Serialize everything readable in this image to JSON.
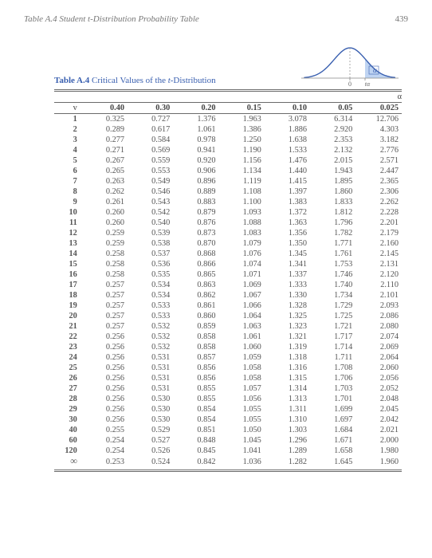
{
  "page": {
    "running_head": "Table A.4   Student t-Distribution Probability Table",
    "page_number": "439"
  },
  "caption": {
    "prefix_bold": "Table A.4",
    "rest": " Critical Values of the ",
    "it": "t",
    "tail": "-Distribution"
  },
  "curve": {
    "line_color": "#3a60b0",
    "fill_color": "#bfd4f2",
    "axis_color": "#888888",
    "tick_label_a": "0",
    "tick_label_b": "tα",
    "shade_label": "α"
  },
  "table": {
    "alpha_symbol": "α",
    "v_symbol": "v",
    "inf_symbol": "∞",
    "alphas": [
      "0.40",
      "0.30",
      "0.20",
      "0.15",
      "0.10",
      "0.05",
      "0.025"
    ],
    "group_size": 5,
    "rows": [
      {
        "v": "1",
        "c": [
          "0.325",
          "0.727",
          "1.376",
          "1.963",
          "3.078",
          "6.314",
          "12.706"
        ]
      },
      {
        "v": "2",
        "c": [
          "0.289",
          "0.617",
          "1.061",
          "1.386",
          "1.886",
          "2.920",
          "4.303"
        ]
      },
      {
        "v": "3",
        "c": [
          "0.277",
          "0.584",
          "0.978",
          "1.250",
          "1.638",
          "2.353",
          "3.182"
        ]
      },
      {
        "v": "4",
        "c": [
          "0.271",
          "0.569",
          "0.941",
          "1.190",
          "1.533",
          "2.132",
          "2.776"
        ]
      },
      {
        "v": "5",
        "c": [
          "0.267",
          "0.559",
          "0.920",
          "1.156",
          "1.476",
          "2.015",
          "2.571"
        ]
      },
      {
        "v": "6",
        "c": [
          "0.265",
          "0.553",
          "0.906",
          "1.134",
          "1.440",
          "1.943",
          "2.447"
        ]
      },
      {
        "v": "7",
        "c": [
          "0.263",
          "0.549",
          "0.896",
          "1.119",
          "1.415",
          "1.895",
          "2.365"
        ]
      },
      {
        "v": "8",
        "c": [
          "0.262",
          "0.546",
          "0.889",
          "1.108",
          "1.397",
          "1.860",
          "2.306"
        ]
      },
      {
        "v": "9",
        "c": [
          "0.261",
          "0.543",
          "0.883",
          "1.100",
          "1.383",
          "1.833",
          "2.262"
        ]
      },
      {
        "v": "10",
        "c": [
          "0.260",
          "0.542",
          "0.879",
          "1.093",
          "1.372",
          "1.812",
          "2.228"
        ]
      },
      {
        "v": "11",
        "c": [
          "0.260",
          "0.540",
          "0.876",
          "1.088",
          "1.363",
          "1.796",
          "2.201"
        ]
      },
      {
        "v": "12",
        "c": [
          "0.259",
          "0.539",
          "0.873",
          "1.083",
          "1.356",
          "1.782",
          "2.179"
        ]
      },
      {
        "v": "13",
        "c": [
          "0.259",
          "0.538",
          "0.870",
          "1.079",
          "1.350",
          "1.771",
          "2.160"
        ]
      },
      {
        "v": "14",
        "c": [
          "0.258",
          "0.537",
          "0.868",
          "1.076",
          "1.345",
          "1.761",
          "2.145"
        ]
      },
      {
        "v": "15",
        "c": [
          "0.258",
          "0.536",
          "0.866",
          "1.074",
          "1.341",
          "1.753",
          "2.131"
        ]
      },
      {
        "v": "16",
        "c": [
          "0.258",
          "0.535",
          "0.865",
          "1.071",
          "1.337",
          "1.746",
          "2.120"
        ]
      },
      {
        "v": "17",
        "c": [
          "0.257",
          "0.534",
          "0.863",
          "1.069",
          "1.333",
          "1.740",
          "2.110"
        ]
      },
      {
        "v": "18",
        "c": [
          "0.257",
          "0.534",
          "0.862",
          "1.067",
          "1.330",
          "1.734",
          "2.101"
        ]
      },
      {
        "v": "19",
        "c": [
          "0.257",
          "0.533",
          "0.861",
          "1.066",
          "1.328",
          "1.729",
          "2.093"
        ]
      },
      {
        "v": "20",
        "c": [
          "0.257",
          "0.533",
          "0.860",
          "1.064",
          "1.325",
          "1.725",
          "2.086"
        ]
      },
      {
        "v": "21",
        "c": [
          "0.257",
          "0.532",
          "0.859",
          "1.063",
          "1.323",
          "1.721",
          "2.080"
        ]
      },
      {
        "v": "22",
        "c": [
          "0.256",
          "0.532",
          "0.858",
          "1.061",
          "1.321",
          "1.717",
          "2.074"
        ]
      },
      {
        "v": "23",
        "c": [
          "0.256",
          "0.532",
          "0.858",
          "1.060",
          "1.319",
          "1.714",
          "2.069"
        ]
      },
      {
        "v": "24",
        "c": [
          "0.256",
          "0.531",
          "0.857",
          "1.059",
          "1.318",
          "1.711",
          "2.064"
        ]
      },
      {
        "v": "25",
        "c": [
          "0.256",
          "0.531",
          "0.856",
          "1.058",
          "1.316",
          "1.708",
          "2.060"
        ]
      },
      {
        "v": "26",
        "c": [
          "0.256",
          "0.531",
          "0.856",
          "1.058",
          "1.315",
          "1.706",
          "2.056"
        ]
      },
      {
        "v": "27",
        "c": [
          "0.256",
          "0.531",
          "0.855",
          "1.057",
          "1.314",
          "1.703",
          "2.052"
        ]
      },
      {
        "v": "28",
        "c": [
          "0.256",
          "0.530",
          "0.855",
          "1.056",
          "1.313",
          "1.701",
          "2.048"
        ]
      },
      {
        "v": "29",
        "c": [
          "0.256",
          "0.530",
          "0.854",
          "1.055",
          "1.311",
          "1.699",
          "2.045"
        ]
      },
      {
        "v": "30",
        "c": [
          "0.256",
          "0.530",
          "0.854",
          "1.055",
          "1.310",
          "1.697",
          "2.042"
        ]
      },
      {
        "v": "40",
        "c": [
          "0.255",
          "0.529",
          "0.851",
          "1.050",
          "1.303",
          "1.684",
          "2.021"
        ]
      },
      {
        "v": "60",
        "c": [
          "0.254",
          "0.527",
          "0.848",
          "1.045",
          "1.296",
          "1.671",
          "2.000"
        ]
      },
      {
        "v": "120",
        "c": [
          "0.254",
          "0.526",
          "0.845",
          "1.041",
          "1.289",
          "1.658",
          "1.980"
        ]
      },
      {
        "v": "INF",
        "c": [
          "0.253",
          "0.524",
          "0.842",
          "1.036",
          "1.282",
          "1.645",
          "1.960"
        ]
      }
    ],
    "colors": {
      "rule": "#6a6a6a",
      "text": "#555555",
      "caption": "#3a60b0"
    }
  }
}
